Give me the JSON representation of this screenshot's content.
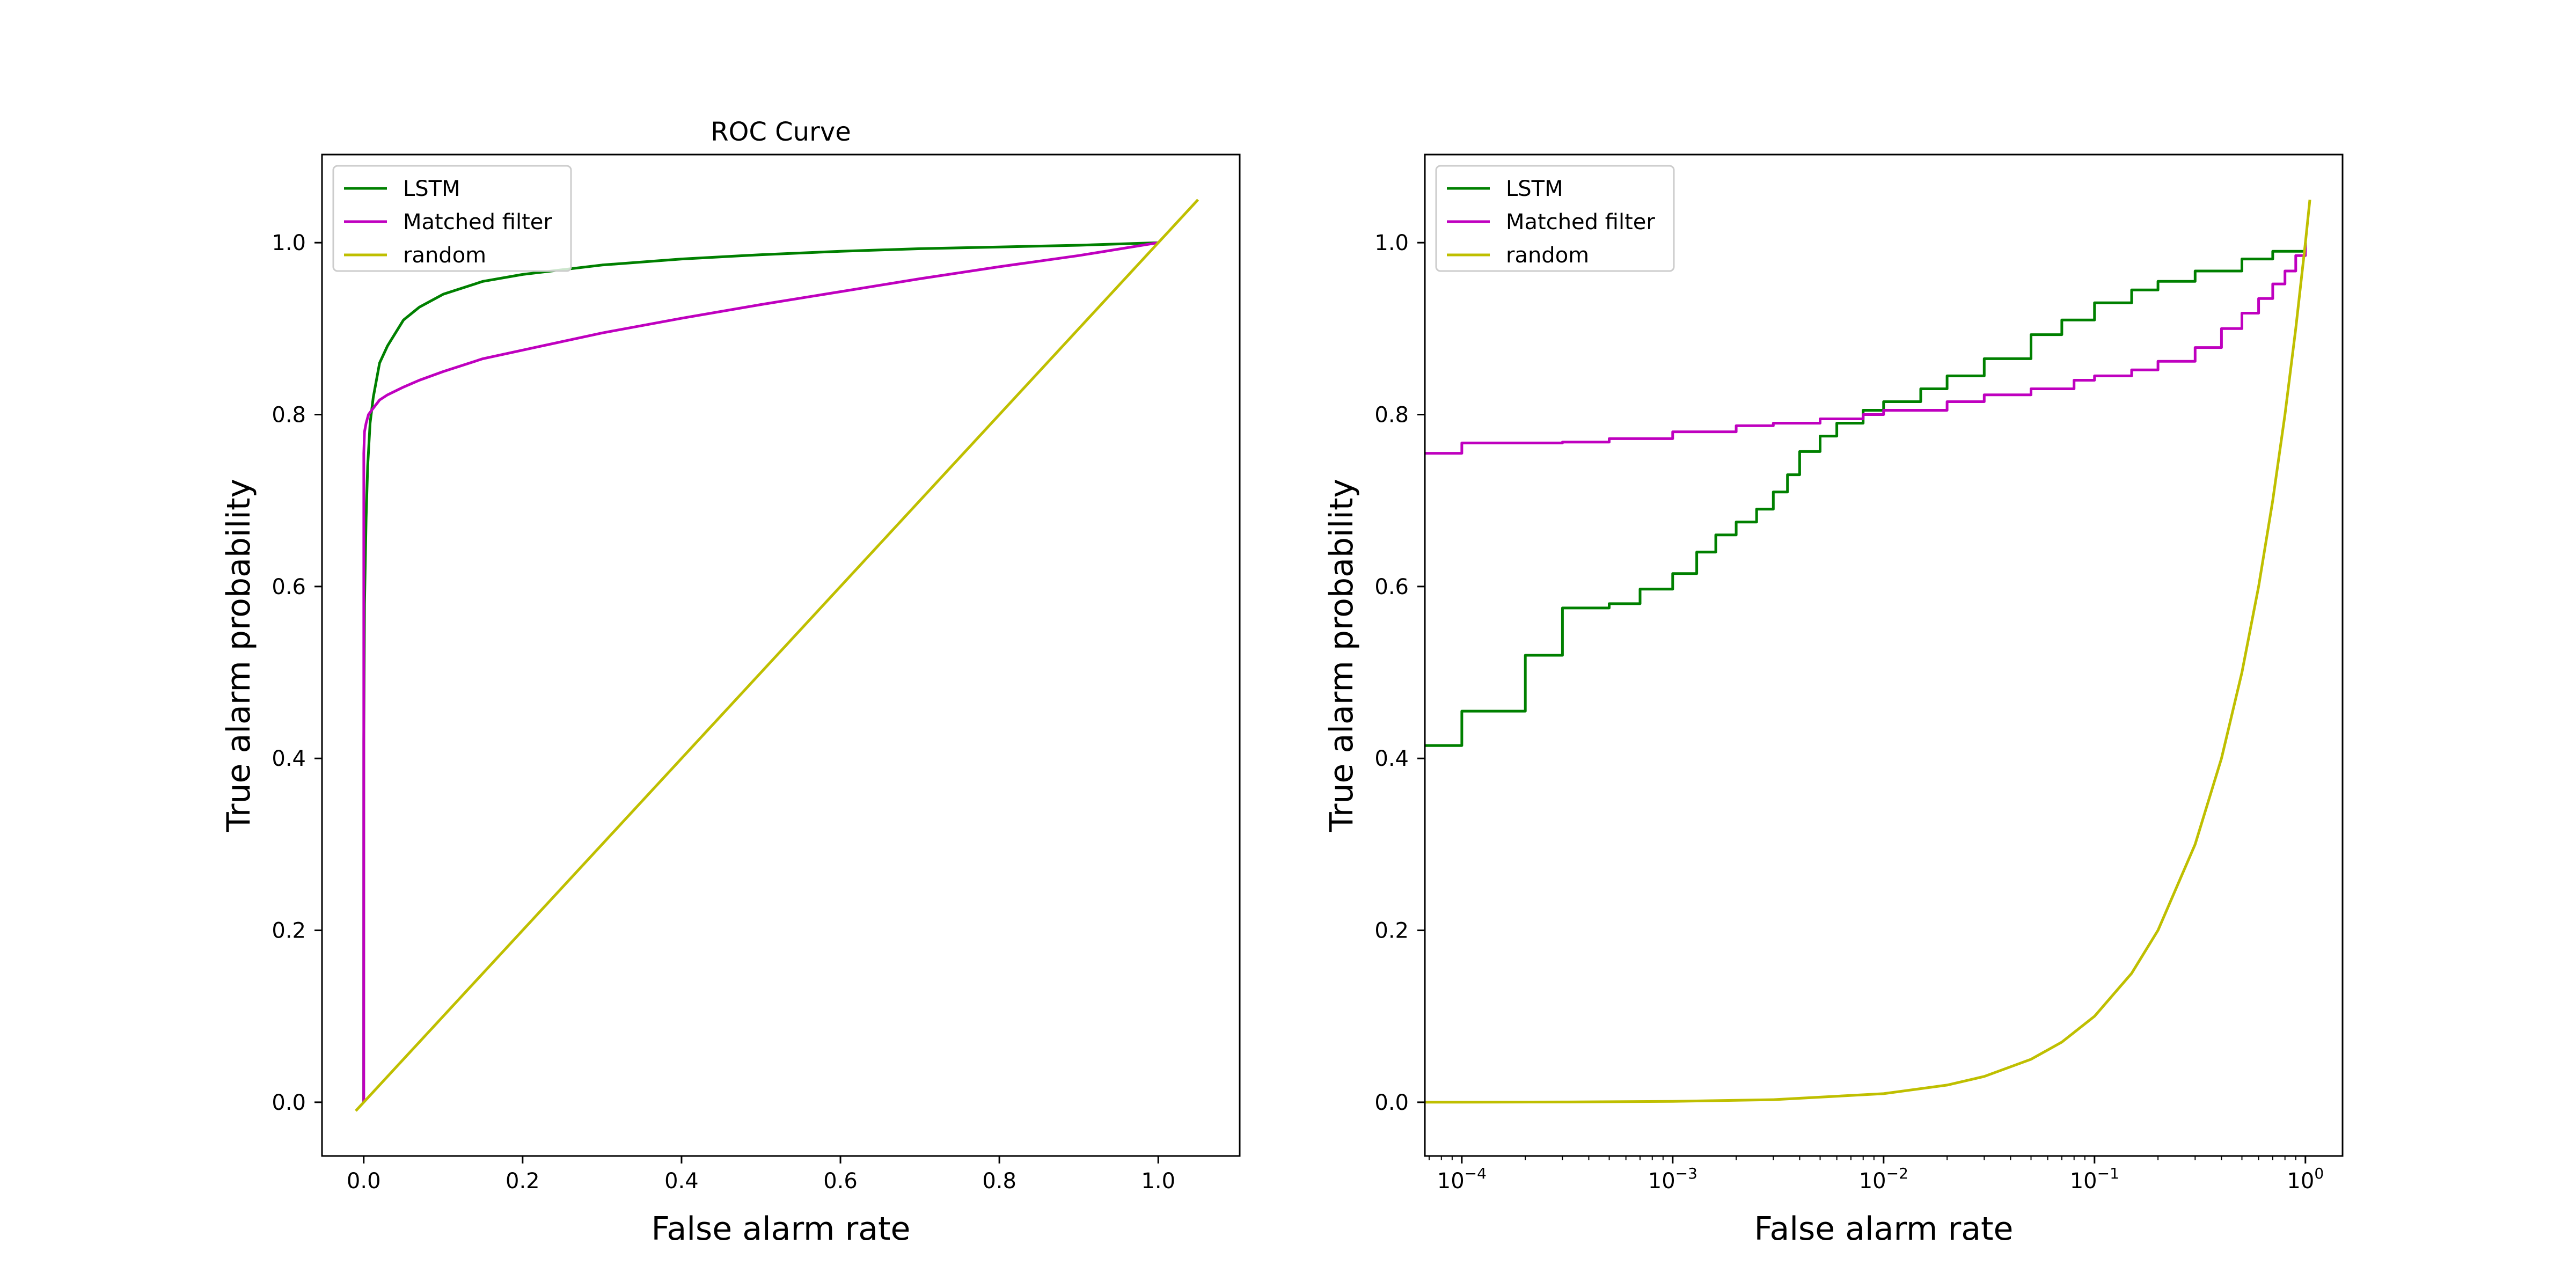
{
  "colors": {
    "lstm": "#008000",
    "matched": "#bf00bf",
    "random": "#bfbf00"
  },
  "chart_data": [
    {
      "type": "line",
      "title": "ROC Curve",
      "xlabel": "False alarm rate",
      "ylabel": "True alarm probability",
      "xscale": "linear",
      "xlim": [
        -0.0525,
        1.1025
      ],
      "ylim": [
        -0.0625,
        1.1025
      ],
      "xticks": [
        0.0,
        0.2,
        0.4,
        0.6,
        0.8,
        1.0
      ],
      "xtick_labels": [
        "0.0",
        "0.2",
        "0.4",
        "0.6",
        "0.8",
        "1.0"
      ],
      "yticks": [
        0.0,
        0.2,
        0.4,
        0.6,
        0.8,
        1.0
      ],
      "ytick_labels": [
        "0.0",
        "0.2",
        "0.4",
        "0.6",
        "0.8",
        "1.0"
      ],
      "legend": "top-left",
      "grid": false,
      "series": [
        {
          "name": "LSTM",
          "color": "#008000",
          "x": [
            0,
            0.0001,
            0.001,
            0.003,
            0.005,
            0.008,
            0.012,
            0.02,
            0.03,
            0.05,
            0.07,
            0.1,
            0.15,
            0.2,
            0.3,
            0.4,
            0.5,
            0.6,
            0.7,
            0.8,
            0.9,
            1.0
          ],
          "y": [
            0,
            0.42,
            0.58,
            0.68,
            0.74,
            0.79,
            0.82,
            0.86,
            0.88,
            0.91,
            0.925,
            0.94,
            0.955,
            0.963,
            0.974,
            0.981,
            0.986,
            0.99,
            0.993,
            0.995,
            0.997,
            1.0
          ]
        },
        {
          "name": "Matched filter",
          "color": "#bf00bf",
          "x": [
            0,
            0.0001,
            0.001,
            0.003,
            0.006,
            0.01,
            0.02,
            0.03,
            0.05,
            0.07,
            0.1,
            0.15,
            0.2,
            0.3,
            0.4,
            0.5,
            0.6,
            0.7,
            0.8,
            0.9,
            1.0
          ],
          "y": [
            0,
            0.755,
            0.78,
            0.79,
            0.8,
            0.805,
            0.817,
            0.823,
            0.832,
            0.84,
            0.85,
            0.865,
            0.875,
            0.895,
            0.912,
            0.928,
            0.943,
            0.958,
            0.972,
            0.985,
            1.0
          ]
        },
        {
          "name": "random",
          "color": "#bfbf00",
          "x": [
            -0.01,
            1.05
          ],
          "y": [
            -0.01,
            1.05
          ]
        }
      ]
    },
    {
      "type": "line",
      "title": "",
      "xlabel": "False alarm rate",
      "ylabel": "True alarm probability",
      "xscale": "log",
      "xlim": [
        6.68e-05,
        1.5
      ],
      "ylim": [
        -0.0625,
        1.1025
      ],
      "xticks": [
        0.0001,
        0.001,
        0.01,
        0.1,
        1
      ],
      "xtick_labels": [
        {
          "base": "10",
          "exp": "−4"
        },
        {
          "base": "10",
          "exp": "−3"
        },
        {
          "base": "10",
          "exp": "−2"
        },
        {
          "base": "10",
          "exp": "−1"
        },
        {
          "base": "10",
          "exp": "0"
        }
      ],
      "yticks": [
        0.0,
        0.2,
        0.4,
        0.6,
        0.8,
        1.0
      ],
      "ytick_labels": [
        "0.0",
        "0.2",
        "0.4",
        "0.6",
        "0.8",
        "1.0"
      ],
      "legend": "top-left",
      "grid": false,
      "series": [
        {
          "name": "LSTM",
          "color": "#008000",
          "step": true,
          "x": [
            6.68e-05,
            0.0001,
            0.0002,
            0.0003,
            0.0005,
            0.0007,
            0.001,
            0.0013,
            0.0016,
            0.002,
            0.0025,
            0.003,
            0.0035,
            0.004,
            0.005,
            0.006,
            0.008,
            0.01,
            0.015,
            0.02,
            0.03,
            0.05,
            0.07,
            0.1,
            0.15,
            0.2,
            0.3,
            0.5,
            0.7,
            1.0
          ],
          "y": [
            0.415,
            0.455,
            0.52,
            0.575,
            0.58,
            0.597,
            0.615,
            0.64,
            0.66,
            0.675,
            0.69,
            0.71,
            0.73,
            0.757,
            0.775,
            0.79,
            0.805,
            0.815,
            0.83,
            0.845,
            0.865,
            0.893,
            0.91,
            0.93,
            0.945,
            0.955,
            0.967,
            0.981,
            0.99,
            1.0
          ]
        },
        {
          "name": "Matched filter",
          "color": "#bf00bf",
          "step": true,
          "x": [
            6.68e-05,
            0.0001,
            0.0003,
            0.0005,
            0.001,
            0.002,
            0.003,
            0.005,
            0.008,
            0.01,
            0.02,
            0.03,
            0.05,
            0.08,
            0.1,
            0.15,
            0.2,
            0.3,
            0.4,
            0.5,
            0.6,
            0.7,
            0.8,
            0.9,
            1.0
          ],
          "y": [
            0.755,
            0.767,
            0.768,
            0.772,
            0.78,
            0.787,
            0.79,
            0.795,
            0.8,
            0.805,
            0.815,
            0.823,
            0.83,
            0.84,
            0.845,
            0.852,
            0.862,
            0.878,
            0.9,
            0.918,
            0.935,
            0.952,
            0.967,
            0.985,
            1.0
          ]
        },
        {
          "name": "random",
          "color": "#bfbf00",
          "step": false,
          "x": [
            6.68e-05,
            0.0001,
            0.0003,
            0.001,
            0.003,
            0.01,
            0.02,
            0.03,
            0.05,
            0.07,
            0.1,
            0.15,
            0.2,
            0.3,
            0.4,
            0.5,
            0.6,
            0.7,
            0.8,
            0.9,
            1.0,
            1.05
          ],
          "y": [
            6.68e-05,
            0.0001,
            0.0003,
            0.001,
            0.003,
            0.01,
            0.02,
            0.03,
            0.05,
            0.07,
            0.1,
            0.15,
            0.2,
            0.3,
            0.4,
            0.5,
            0.6,
            0.7,
            0.8,
            0.9,
            1.0,
            1.05
          ]
        }
      ]
    }
  ]
}
